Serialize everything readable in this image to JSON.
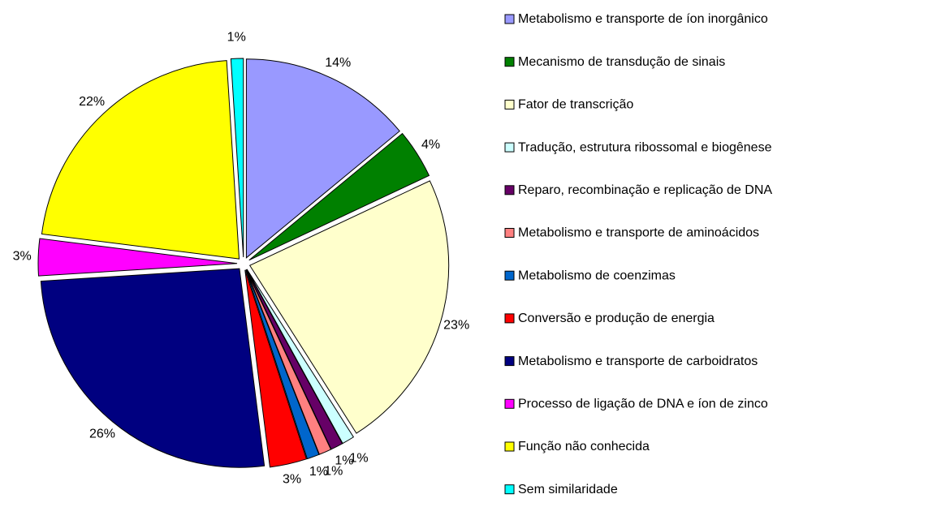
{
  "chart_data": {
    "type": "pie",
    "categories": [
      "Metabolismo e transporte de íon inorgânico",
      "Mecanismo de transdução de sinais",
      "Fator de transcrição",
      "Tradução, estrutura ribossomal e biogênese",
      "Reparo, recombinação e replicação de DNA",
      "Metabolismo e transporte de aminoácidos",
      "Metabolismo de coenzimas",
      "Conversão e produção de energia",
      "Metabolismo e transporte de carboidratos",
      "Processo de ligação de DNA e íon de zinco",
      "Função não conhecida",
      "Sem similaridade"
    ],
    "values": [
      14,
      4,
      23,
      1,
      1,
      1,
      1,
      3,
      26,
      3,
      22,
      1
    ],
    "value_labels": [
      "14%",
      "4%",
      "23%",
      "1%",
      "1%",
      "1%",
      "1%",
      "3%",
      "26%",
      "3%",
      "22%",
      "1%"
    ],
    "colors": [
      "#9999ff",
      "#008000",
      "#ffffcc",
      "#ccffff",
      "#660066",
      "#ff8080",
      "#0066cc",
      "#ff0000",
      "#000080",
      "#ff00ff",
      "#ffff00",
      "#00ffff"
    ],
    "legend": "right"
  }
}
